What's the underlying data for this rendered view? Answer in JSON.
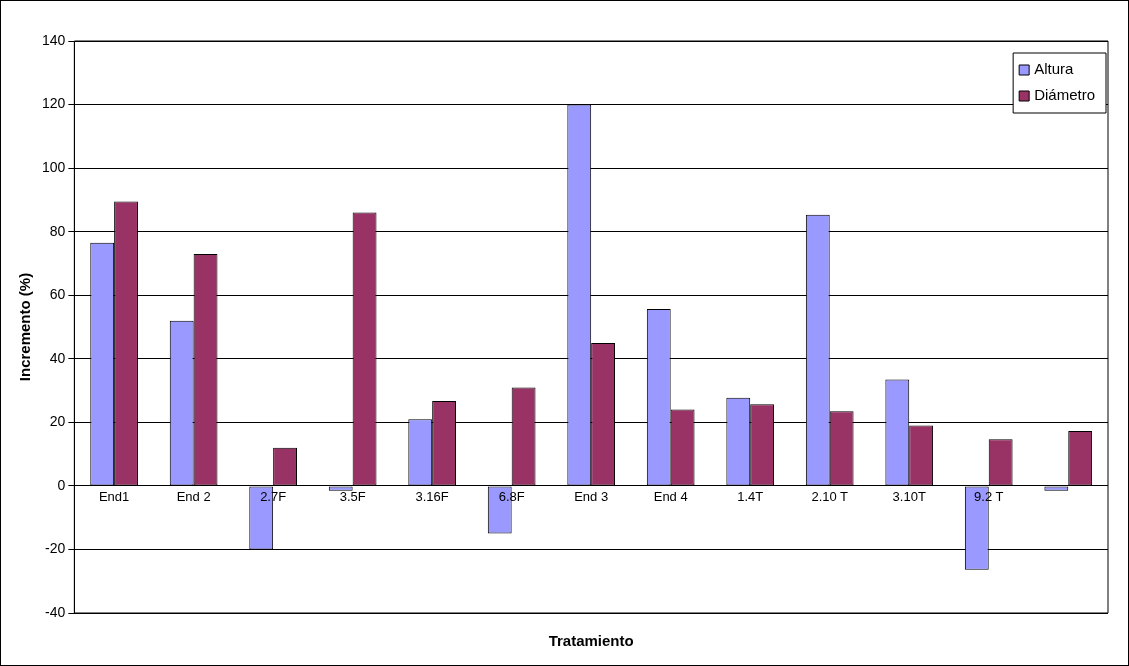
{
  "chart_data": {
    "type": "bar",
    "xlabel": "Tratamiento",
    "ylabel": "Incremento (%)",
    "categories": [
      "End1",
      "End 2",
      "2.7F",
      "3.5F",
      "3.16F",
      "6.8F",
      "End 3",
      "End 4",
      "1.4T",
      "2.10 T",
      "3.10T",
      "9.2 T",
      null
    ],
    "series": [
      {
        "name": "Altura",
        "color": "#9999ff",
        "values": [
          76.5,
          52,
          -20,
          -1.5,
          21,
          -15,
          120,
          55.7,
          27.7,
          85.3,
          33.5,
          -26.4,
          -1.5
        ]
      },
      {
        "name": "Diámetro",
        "color": "#993366",
        "values": [
          89.5,
          73,
          12,
          86,
          26.7,
          31,
          45,
          24,
          25.7,
          23.5,
          19,
          14.7,
          17.3
        ]
      }
    ],
    "ylim": [
      -40,
      140
    ],
    "yticks": [
      -40,
      -20,
      0,
      20,
      40,
      60,
      80,
      100,
      120,
      140
    ],
    "grid": "y",
    "legend": "top right"
  }
}
